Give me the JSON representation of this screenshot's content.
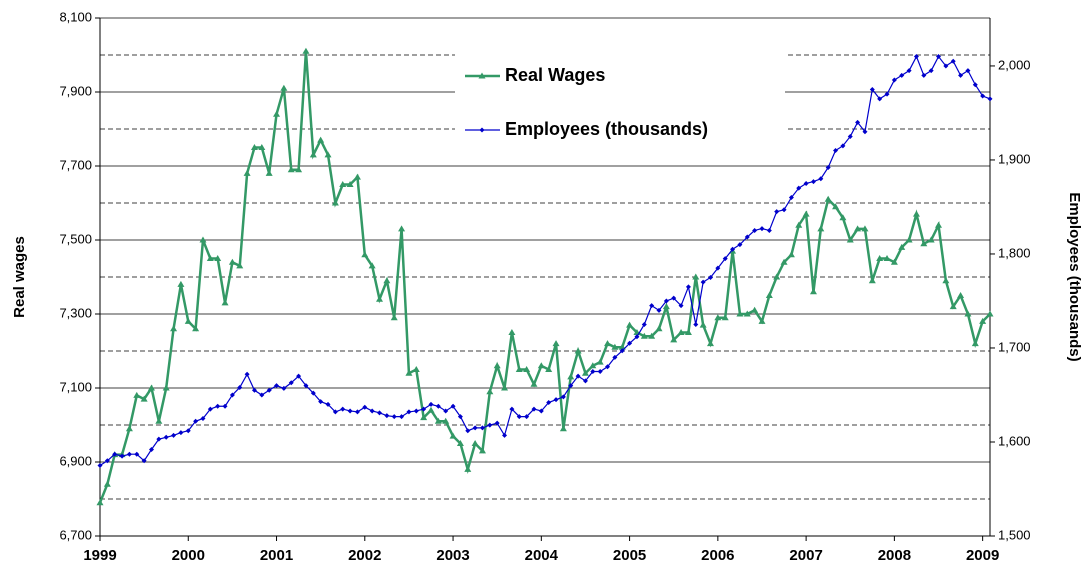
{
  "chart_data": {
    "type": "line",
    "y_label": "Real wages",
    "y2_label": "Employees (thousands)",
    "categories": [
      "1999",
      null,
      null,
      null,
      null,
      null,
      null,
      null,
      null,
      null,
      null,
      null,
      "2000",
      null,
      null,
      null,
      null,
      null,
      null,
      null,
      null,
      null,
      null,
      null,
      "2001",
      null,
      null,
      null,
      null,
      null,
      null,
      null,
      null,
      null,
      null,
      null,
      "2002",
      null,
      null,
      null,
      null,
      null,
      null,
      null,
      null,
      null,
      null,
      null,
      "2003",
      null,
      null,
      null,
      null,
      null,
      null,
      null,
      null,
      null,
      null,
      null,
      "2004",
      null,
      null,
      null,
      null,
      null,
      null,
      null,
      null,
      null,
      null,
      null,
      "2005",
      null,
      null,
      null,
      null,
      null,
      null,
      null,
      null,
      null,
      null,
      null,
      "2006",
      null,
      null,
      null,
      null,
      null,
      null,
      null,
      null,
      null,
      null,
      null,
      "2007",
      null,
      null,
      null,
      null,
      null,
      null,
      null,
      null,
      null,
      null,
      null,
      "2008",
      null,
      null,
      null,
      null,
      null,
      null,
      null,
      null,
      null,
      null,
      null,
      "2009",
      null
    ],
    "series": [
      {
        "name": "Real Wages",
        "color": "#339966",
        "marker": "triangle",
        "values": [
          6790,
          6840,
          6920,
          6920,
          6990,
          7080,
          7070,
          7100,
          7010,
          7100,
          7260,
          7380,
          7280,
          7260,
          7500,
          7450,
          7450,
          7330,
          7440,
          7430,
          7680,
          7750,
          7750,
          7680,
          7840,
          7910,
          7690,
          7690,
          8010,
          7730,
          7770,
          7730,
          7600,
          7650,
          7650,
          7670,
          7460,
          7430,
          7340,
          7390,
          7290,
          7530,
          7140,
          7150,
          7020,
          7040,
          7010,
          7010,
          6970,
          6950,
          6880,
          6950,
          6930,
          7090,
          7160,
          7100,
          7250,
          7150,
          7150,
          7110,
          7160,
          7150,
          7220,
          6990,
          7130,
          7200,
          7140,
          7160,
          7170,
          7220,
          7210,
          7210,
          7270,
          7250,
          7240,
          7240,
          7260,
          7320,
          7230,
          7250,
          7250,
          7400,
          7270,
          7220,
          7290,
          7290,
          7470,
          7300,
          7300,
          7310,
          7280,
          7350,
          7400,
          7440,
          7460,
          7540,
          7570,
          7360,
          7530,
          7610,
          7590,
          7560,
          7500,
          7530,
          7530,
          7390,
          7450,
          7450,
          7440,
          7480,
          7500,
          7570,
          7490,
          7500,
          7540,
          7390,
          7320,
          7350,
          7300,
          7220,
          7280,
          7300
        ]
      },
      {
        "name": "Employees (thousands)",
        "color": "#0000cc",
        "marker": "diamond",
        "axis": "y2",
        "values": [
          1575,
          1580,
          1587,
          1585,
          1587,
          1587,
          1580,
          1592,
          1603,
          1605,
          1607,
          1610,
          1612,
          1622,
          1625,
          1635,
          1638,
          1638,
          1650,
          1658,
          1672,
          1655,
          1650,
          1655,
          1660,
          1657,
          1663,
          1670,
          1660,
          1652,
          1643,
          1640,
          1632,
          1635,
          1633,
          1632,
          1637,
          1633,
          1631,
          1628,
          1627,
          1627,
          1632,
          1633,
          1635,
          1640,
          1638,
          1633,
          1638,
          1627,
          1612,
          1615,
          1615,
          1618,
          1620,
          1607,
          1635,
          1627,
          1627,
          1635,
          1633,
          1642,
          1645,
          1648,
          1660,
          1670,
          1665,
          1675,
          1675,
          1680,
          1690,
          1697,
          1705,
          1712,
          1725,
          1745,
          1740,
          1750,
          1753,
          1745,
          1765,
          1725,
          1770,
          1775,
          1785,
          1795,
          1805,
          1810,
          1818,
          1825,
          1827,
          1825,
          1845,
          1847,
          1860,
          1870,
          1875,
          1877,
          1880,
          1892,
          1910,
          1915,
          1925,
          1940,
          1930,
          1975,
          1965,
          1970,
          1985,
          1990,
          1995,
          2010,
          1990,
          1995,
          2010,
          2000,
          2005,
          1990,
          1995,
          1980,
          1968,
          1965
        ]
      }
    ],
    "ylim": [
      6700,
      8100
    ],
    "yticks": [
      {
        "value": 6700,
        "label": "6,700"
      },
      {
        "value": 6900,
        "label": "6,900"
      },
      {
        "value": 7100,
        "label": "7,100"
      },
      {
        "value": 7300,
        "label": "7,300"
      },
      {
        "value": 7500,
        "label": "7,500"
      },
      {
        "value": 7700,
        "label": "7,700"
      },
      {
        "value": 7900,
        "label": "7,900"
      },
      {
        "value": 8100,
        "label": "8,100"
      }
    ],
    "minor_grid_yticks": [
      6800,
      7000,
      7200,
      7400,
      7600,
      7800,
      8000
    ],
    "y2lim": [
      1500,
      2051
    ],
    "y2ticks": [
      {
        "value": 1500,
        "label": "1,500"
      },
      {
        "value": 1600,
        "label": "1,600"
      },
      {
        "value": 1700,
        "label": "1,700"
      },
      {
        "value": 1800,
        "label": "1,800"
      },
      {
        "value": 1900,
        "label": "1,900"
      },
      {
        "value": 2000,
        "label": "2,000"
      }
    ],
    "grid": true,
    "legend": "top"
  }
}
